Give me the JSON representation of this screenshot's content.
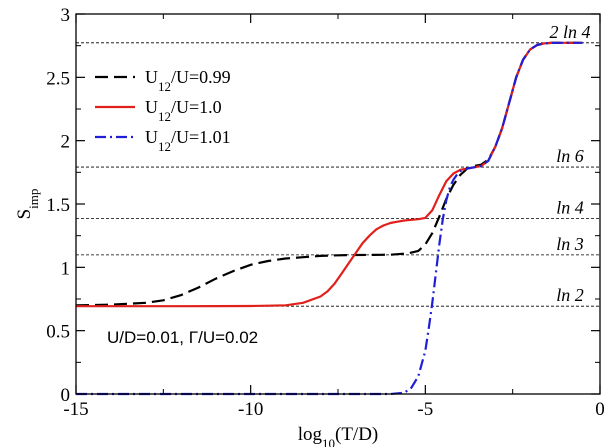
{
  "chart_data": {
    "type": "line",
    "xlabel": "log10(T/D)",
    "ylabel": "Simp",
    "xlim": [
      -15,
      0
    ],
    "ylim": [
      0,
      3
    ],
    "x_ticks": [
      -15,
      -10,
      -5,
      0
    ],
    "y_ticks": [
      0,
      0.5,
      1,
      1.5,
      2,
      2.5,
      3
    ],
    "x_tick_labels": [
      "-15",
      "-10",
      "-5",
      "0"
    ],
    "y_tick_labels": [
      "0",
      "0.5",
      "1",
      "1.5",
      "2",
      "2.5",
      "3"
    ],
    "grid": false,
    "legend_position": "upper-left",
    "annotation": "U/D=0.01, Γ/U=0.02",
    "reference_lines": [
      {
        "label": "2 ln 4",
        "y": 2.7726
      },
      {
        "label": "ln 6",
        "y": 1.7918
      },
      {
        "label": "ln 4",
        "y": 1.3863
      },
      {
        "label": "ln 3",
        "y": 1.0986
      },
      {
        "label": "ln 2",
        "y": 0.6931
      }
    ],
    "series": [
      {
        "name": "U12/U=0.99",
        "color": "#000000",
        "style": "dashed",
        "x": [
          -15,
          -14,
          -13,
          -12.5,
          -12,
          -11.5,
          -11,
          -10.5,
          -10,
          -9.5,
          -9,
          -8.5,
          -8,
          -7.5,
          -7,
          -6.5,
          -6,
          -5.5,
          -5.2,
          -5,
          -4.8,
          -4.6,
          -4.4,
          -4.2,
          -4,
          -3.8,
          -3.6,
          -3.4,
          -3.2,
          -3,
          -2.8,
          -2.6,
          -2.4,
          -2.2,
          -2,
          -1.8,
          -1.6,
          -1.4,
          -1.2,
          -1,
          -0.8,
          -0.5
        ],
        "y": [
          0.7,
          0.705,
          0.72,
          0.74,
          0.78,
          0.84,
          0.91,
          0.97,
          1.02,
          1.05,
          1.07,
          1.08,
          1.09,
          1.095,
          1.097,
          1.098,
          1.1,
          1.11,
          1.13,
          1.18,
          1.27,
          1.4,
          1.54,
          1.65,
          1.73,
          1.78,
          1.8,
          1.81,
          1.85,
          1.95,
          2.1,
          2.3,
          2.5,
          2.64,
          2.72,
          2.755,
          2.768,
          2.772,
          2.773,
          2.773,
          2.773,
          2.773
        ]
      },
      {
        "name": "U12/U=1.0",
        "color": "#e0201b",
        "style": "solid",
        "x": [
          -15,
          -14,
          -13,
          -12,
          -11,
          -10,
          -9.5,
          -9,
          -8.5,
          -8,
          -7.8,
          -7.6,
          -7.4,
          -7.2,
          -7,
          -6.8,
          -6.6,
          -6.4,
          -6.2,
          -6,
          -5.8,
          -5.6,
          -5.4,
          -5.2,
          -5,
          -4.8,
          -4.6,
          -4.4,
          -4.2,
          -4,
          -3.8,
          -3.6,
          -3.4,
          -3.2,
          -3,
          -2.8,
          -2.6,
          -2.4,
          -2.2,
          -2,
          -1.8,
          -1.6,
          -1.4,
          -1.2,
          -1,
          -0.8,
          -0.5
        ],
        "y": [
          0.693,
          0.693,
          0.693,
          0.693,
          0.694,
          0.695,
          0.697,
          0.7,
          0.72,
          0.77,
          0.81,
          0.87,
          0.95,
          1.03,
          1.11,
          1.19,
          1.25,
          1.3,
          1.33,
          1.35,
          1.36,
          1.37,
          1.375,
          1.38,
          1.39,
          1.45,
          1.57,
          1.68,
          1.74,
          1.77,
          1.78,
          1.79,
          1.8,
          1.84,
          1.95,
          2.1,
          2.3,
          2.5,
          2.64,
          2.72,
          2.755,
          2.768,
          2.772,
          2.773,
          2.773,
          2.773,
          2.773
        ]
      },
      {
        "name": "U12/U=1.01",
        "color": "#1f1fd6",
        "style": "dashdot",
        "x": [
          -15,
          -14,
          -13,
          -12,
          -11,
          -10,
          -9,
          -8,
          -7,
          -6,
          -5.6,
          -5.4,
          -5.2,
          -5,
          -4.9,
          -4.8,
          -4.7,
          -4.6,
          -4.5,
          -4.4,
          -4.3,
          -4.2,
          -4.1,
          -4,
          -3.8,
          -3.6,
          -3.4,
          -3.2,
          -3,
          -2.8,
          -2.6,
          -2.4,
          -2.2,
          -2,
          -1.8,
          -1.6,
          -1.4,
          -1.2,
          -1,
          -0.8,
          -0.5
        ],
        "y": [
          0,
          0,
          0,
          0,
          0,
          0,
          0,
          0,
          0,
          0,
          0.01,
          0.05,
          0.14,
          0.34,
          0.52,
          0.72,
          0.95,
          1.18,
          1.38,
          1.53,
          1.63,
          1.69,
          1.73,
          1.76,
          1.78,
          1.79,
          1.8,
          1.84,
          1.95,
          2.1,
          2.3,
          2.5,
          2.64,
          2.72,
          2.755,
          2.768,
          2.772,
          2.773,
          2.773,
          2.773,
          2.773
        ]
      }
    ]
  }
}
